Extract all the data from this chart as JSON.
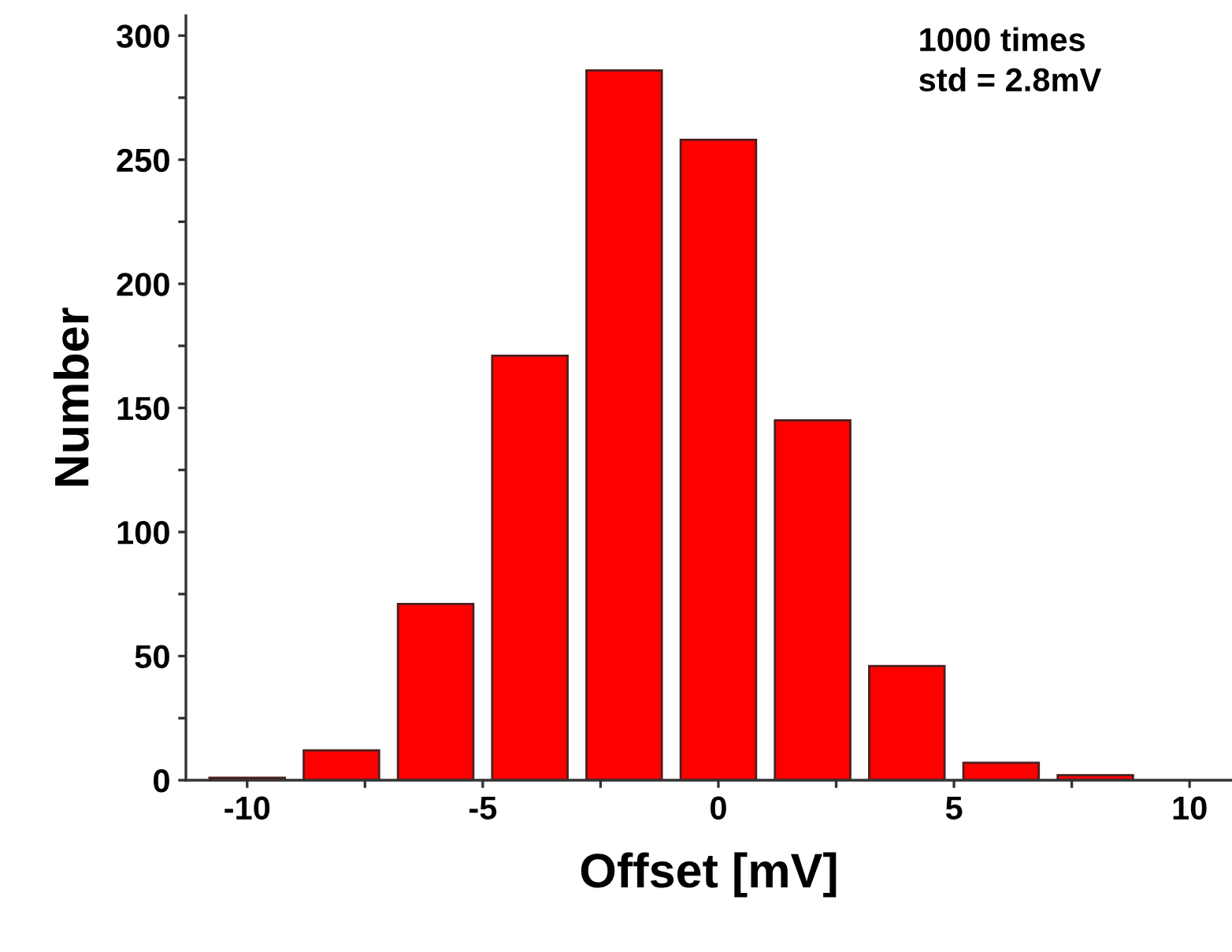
{
  "chart_data": {
    "type": "histogram",
    "xlabel": "Offset [mV]",
    "ylabel": "Number",
    "annotations": [
      "1000 times\nstd = 2.8mV"
    ],
    "bins": [
      -11,
      -9,
      -7,
      -5,
      -3,
      -1,
      1,
      3,
      5,
      7,
      9
    ],
    "values": [
      1,
      12,
      71,
      171,
      286,
      258,
      145,
      46,
      7,
      2
    ],
    "color": "#ff0000",
    "xlim": [
      -11.3,
      10.9
    ],
    "ylim": [
      0,
      308
    ],
    "xticks": [
      -10,
      {
        "value": -7.5,
        "label": null
      },
      -5,
      {
        "value": -2.5,
        "label": null
      },
      0,
      {
        "value": 2.5,
        "label": null
      },
      5,
      {
        "value": 7.5,
        "label": null
      },
      10
    ],
    "yticks": [
      0,
      {
        "value": 25,
        "label": null
      },
      50,
      {
        "value": 75,
        "label": null
      },
      100,
      {
        "value": 125,
        "label": null
      },
      150,
      {
        "value": 175,
        "label": null
      },
      200,
      {
        "value": 225,
        "label": null
      },
      250,
      {
        "value": 275,
        "label": null
      },
      300
    ],
    "grid": false,
    "legend": false
  }
}
